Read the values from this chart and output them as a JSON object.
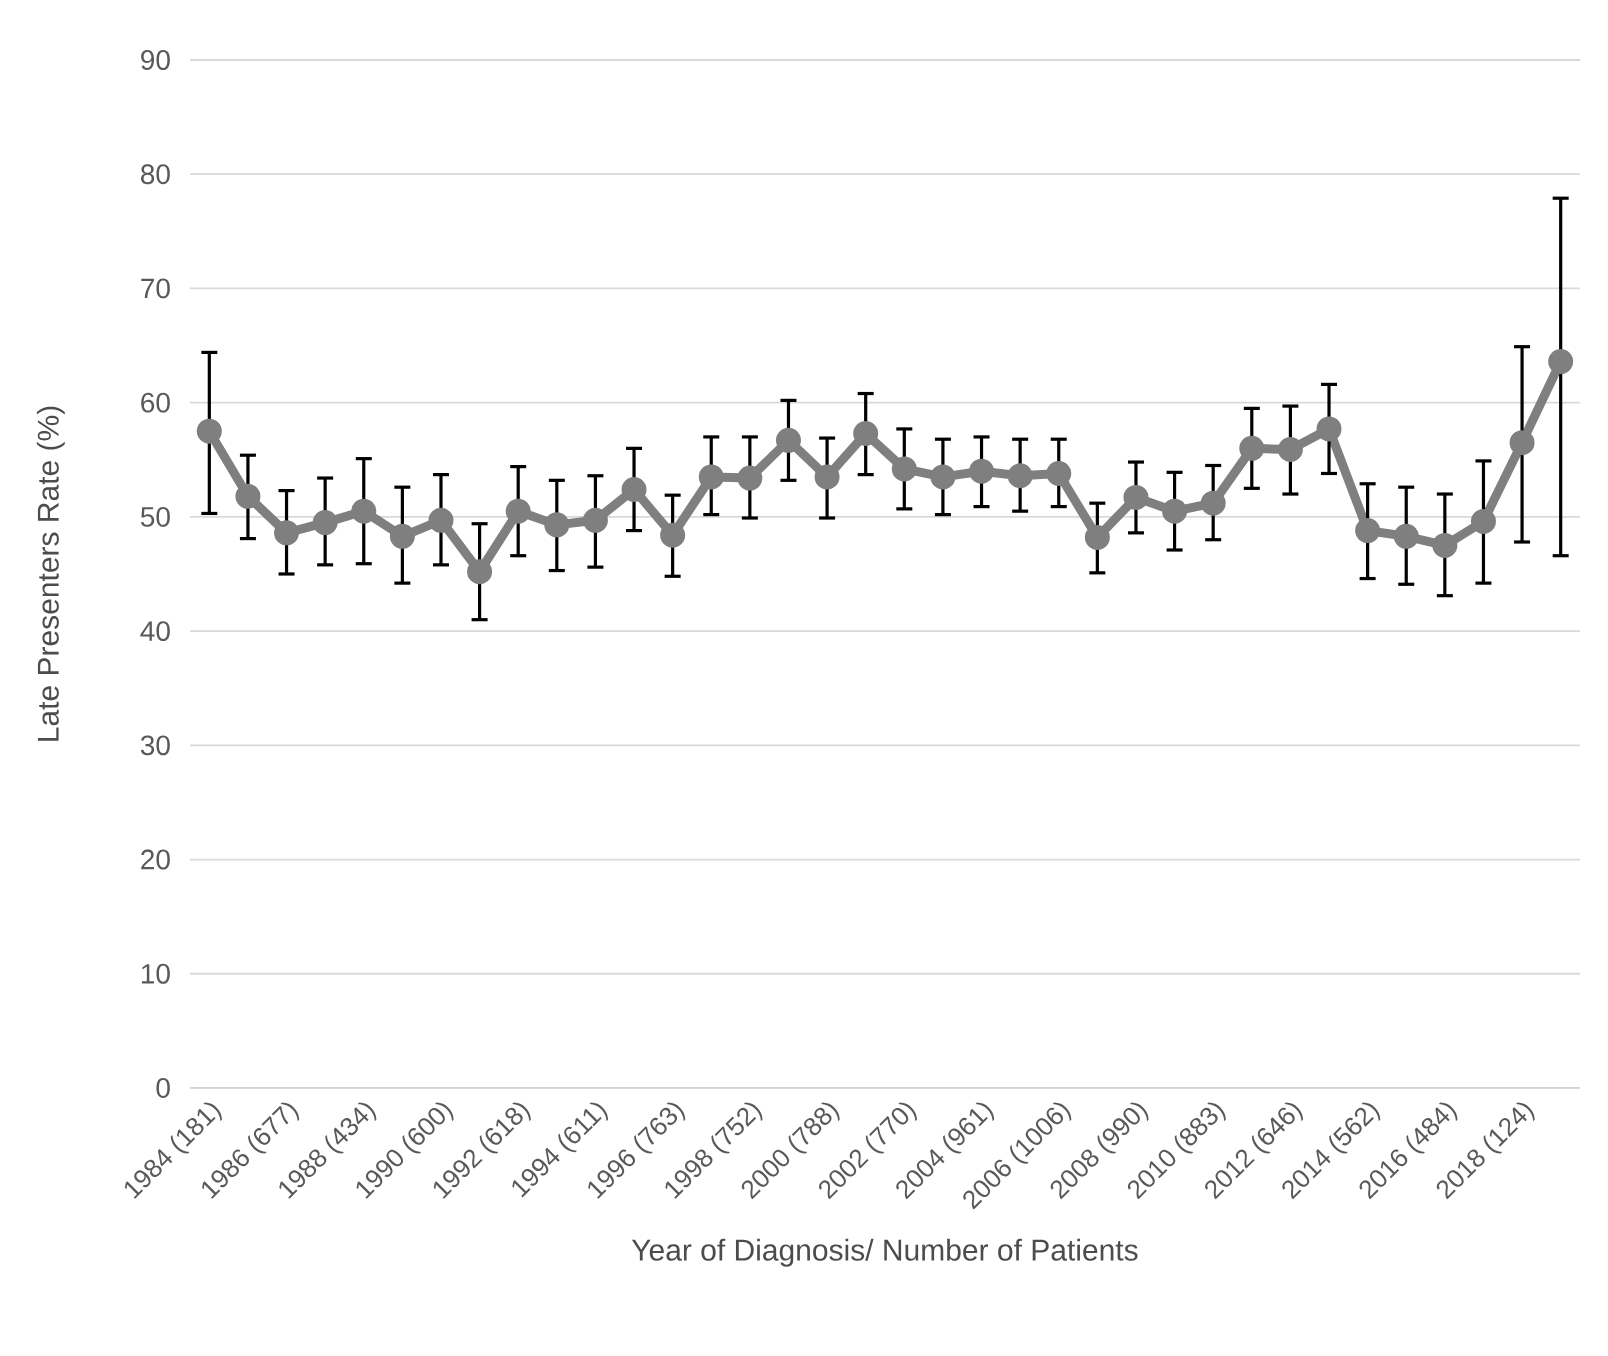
{
  "chart_data": {
    "type": "line",
    "xlabel": "Year of Diagnosis/ Number of Patients",
    "ylabel": "Late Presenters Rate (%)",
    "categories": [
      "1984 (181)",
      null,
      "1986 (677)",
      null,
      "1988 (434)",
      null,
      "1990 (600)",
      null,
      "1992 (618)",
      null,
      "1994 (611)",
      null,
      "1996 (763)",
      null,
      "1998 (752)",
      null,
      "2000 (788)",
      null,
      "2002 (770)",
      null,
      "2004 (961)",
      null,
      "2006 (1006)",
      null,
      "2008 (990)",
      null,
      "2010 (883)",
      null,
      "2012 (646)",
      null,
      "2014 (562)",
      null,
      "2016 (484)",
      null,
      "2018 (124)",
      null
    ],
    "series": [
      {
        "color": "#7f7f7f",
        "values": [
          57.5,
          51.8,
          48.6,
          49.5,
          50.5,
          48.3,
          49.7,
          45.2,
          50.5,
          49.3,
          49.7,
          52.4,
          48.4,
          53.5,
          53.4,
          56.7,
          53.5,
          57.3,
          54.2,
          53.5,
          54.0,
          53.6,
          53.8,
          48.2,
          51.7,
          50.5,
          51.2,
          56.0,
          55.9,
          57.7,
          48.8,
          48.3,
          47.5,
          49.6,
          56.5,
          63.6
        ],
        "errors": [
          [
            50.3,
            64.4
          ],
          [
            48.1,
            55.4
          ],
          [
            45.0,
            52.3
          ],
          [
            45.8,
            53.4
          ],
          [
            45.9,
            55.1
          ],
          [
            44.2,
            52.6
          ],
          [
            45.8,
            53.7
          ],
          [
            41.0,
            49.4
          ],
          [
            46.6,
            54.4
          ],
          [
            45.3,
            53.2
          ],
          [
            45.6,
            53.6
          ],
          [
            48.8,
            56.0
          ],
          [
            44.8,
            51.9
          ],
          [
            50.2,
            57.0
          ],
          [
            49.9,
            57.0
          ],
          [
            53.2,
            60.2
          ],
          [
            49.9,
            56.9
          ],
          [
            53.7,
            60.8
          ],
          [
            50.7,
            57.7
          ],
          [
            50.2,
            56.8
          ],
          [
            50.9,
            57.0
          ],
          [
            50.5,
            56.8
          ],
          [
            50.9,
            56.8
          ],
          [
            45.1,
            51.2
          ],
          [
            48.6,
            54.8
          ],
          [
            47.1,
            53.9
          ],
          [
            48.0,
            54.5
          ],
          [
            52.5,
            59.5
          ],
          [
            52.0,
            59.7
          ],
          [
            53.8,
            61.6
          ],
          [
            44.6,
            52.9
          ],
          [
            44.1,
            52.6
          ],
          [
            43.1,
            52.0
          ],
          [
            44.2,
            54.9
          ],
          [
            47.8,
            64.9
          ],
          [
            46.6,
            77.9
          ]
        ]
      }
    ],
    "ylim": [
      0,
      90
    ],
    "yticks": [
      0,
      10,
      20,
      30,
      40,
      50,
      60,
      70,
      80,
      90
    ],
    "grid": "y",
    "marker": "circle",
    "line_style": "solid"
  }
}
